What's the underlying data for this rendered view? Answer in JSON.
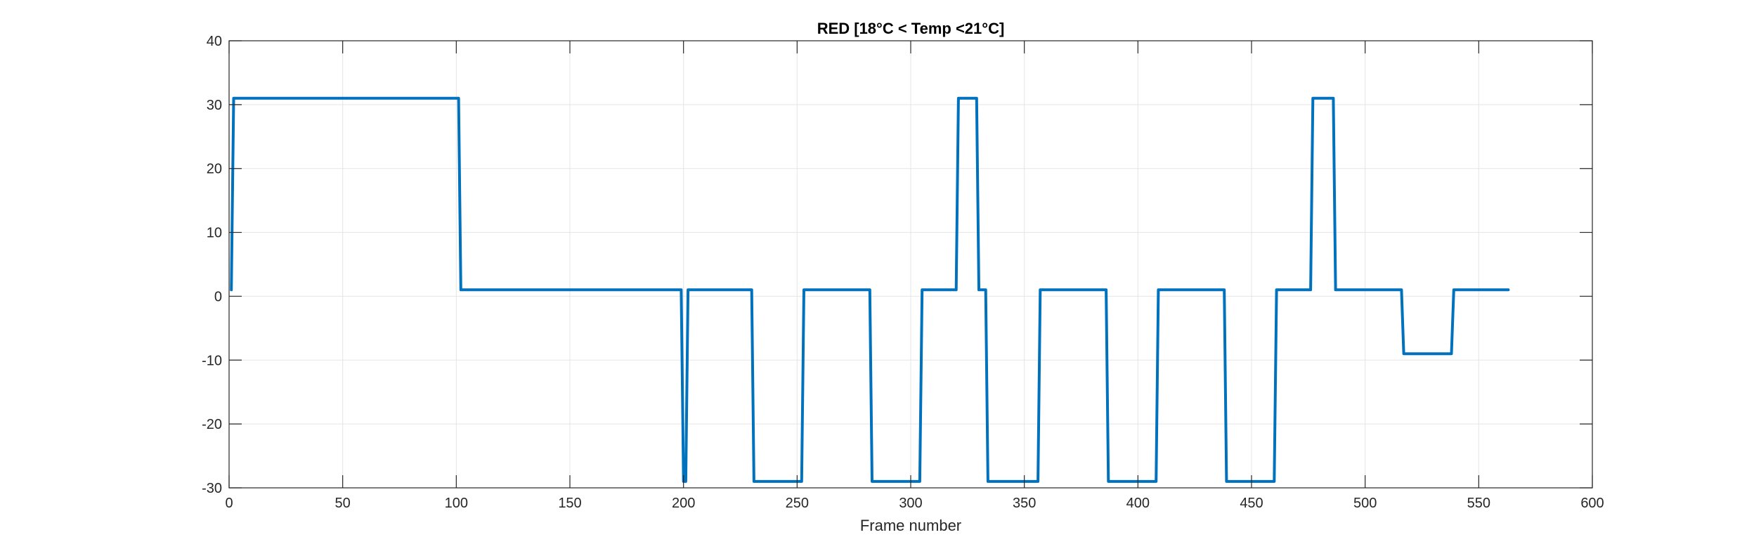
{
  "chart_data": {
    "type": "line",
    "title": "RED [18°C < Temp <21°C]",
    "xlabel": "Frame number",
    "ylabel": "",
    "xlim": [
      0,
      600
    ],
    "ylim": [
      -30,
      40
    ],
    "xticks": [
      0,
      50,
      100,
      150,
      200,
      250,
      300,
      350,
      400,
      450,
      500,
      550,
      600
    ],
    "yticks": [
      -30,
      -20,
      -10,
      0,
      10,
      20,
      30,
      40
    ],
    "grid": true,
    "line_color": "#0072BD",
    "grid_color": "#e5e5e5",
    "series": [
      {
        "x": [
          1,
          2,
          101,
          102,
          199,
          200,
          201,
          202,
          230,
          231,
          252,
          253,
          282,
          283,
          304,
          305,
          320,
          321,
          329,
          330,
          333,
          334,
          356,
          357,
          386,
          387,
          408,
          409,
          438,
          439,
          460,
          461,
          476,
          477,
          486,
          487,
          516,
          517,
          538,
          539,
          563
        ],
        "y": [
          1,
          31,
          31,
          1,
          1,
          -29,
          -29,
          1,
          1,
          -29,
          -29,
          1,
          1,
          -29,
          -29,
          1,
          1,
          31,
          31,
          1,
          1,
          -29,
          -29,
          1,
          1,
          -29,
          -29,
          1,
          1,
          -29,
          -29,
          1,
          1,
          31,
          31,
          1,
          1,
          -9,
          -9,
          1,
          1
        ]
      }
    ]
  }
}
